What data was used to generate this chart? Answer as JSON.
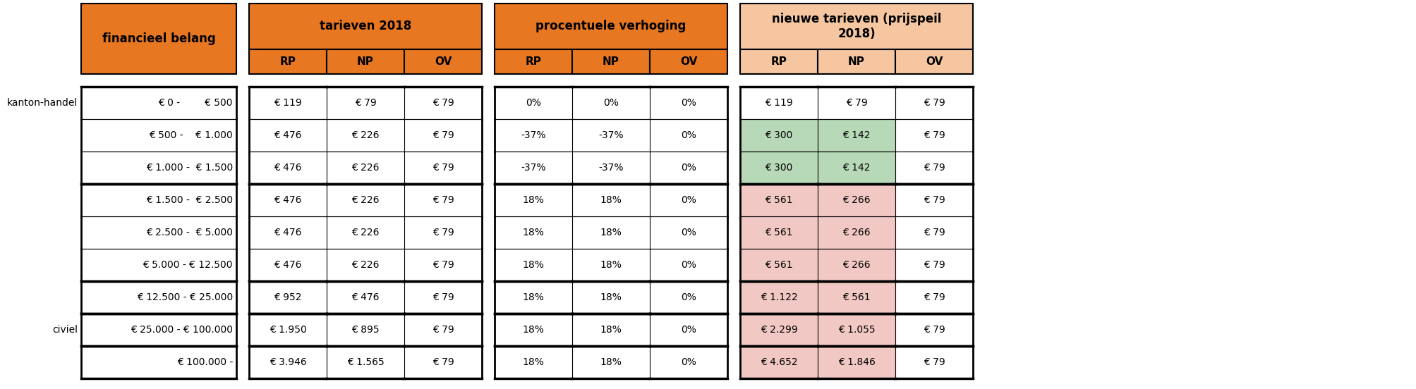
{
  "header_orange": "#E87722",
  "header_light_orange": "#F5C6A0",
  "cell_green": "#B8D9B8",
  "cell_pink": "#F2C8C4",
  "cell_white": "#FFFFFF",
  "border_color": "#000000",
  "financieel_belang": [
    "€ 0 -        € 500",
    "€ 500 -    € 1.000",
    "€ 1.000 -  € 1.500",
    "€ 1.500 -  € 2.500",
    "€ 2.500 -  € 5.000",
    "€ 5.000 - € 12.500",
    "€ 12.500 - € 25.000",
    "€ 25.000 - € 100.000",
    "€ 100.000 -"
  ],
  "tarieven_2018": [
    [
      "€ 119",
      "€ 79",
      "€ 79"
    ],
    [
      "€ 476",
      "€ 226",
      "€ 79"
    ],
    [
      "€ 476",
      "€ 226",
      "€ 79"
    ],
    [
      "€ 476",
      "€ 226",
      "€ 79"
    ],
    [
      "€ 476",
      "€ 226",
      "€ 79"
    ],
    [
      "€ 476",
      "€ 226",
      "€ 79"
    ],
    [
      "€ 952",
      "€ 476",
      "€ 79"
    ],
    [
      "€ 1.950",
      "€ 895",
      "€ 79"
    ],
    [
      "€ 3.946",
      "€ 1.565",
      "€ 79"
    ]
  ],
  "procentuele_verhoging": [
    [
      "0%",
      "0%",
      "0%"
    ],
    [
      "-37%",
      "-37%",
      "0%"
    ],
    [
      "-37%",
      "-37%",
      "0%"
    ],
    [
      "18%",
      "18%",
      "0%"
    ],
    [
      "18%",
      "18%",
      "0%"
    ],
    [
      "18%",
      "18%",
      "0%"
    ],
    [
      "18%",
      "18%",
      "0%"
    ],
    [
      "18%",
      "18%",
      "0%"
    ],
    [
      "18%",
      "18%",
      "0%"
    ]
  ],
  "nieuwe_tarieven": [
    [
      "€ 119",
      "€ 79",
      "€ 79"
    ],
    [
      "€ 300",
      "€ 142",
      "€ 79"
    ],
    [
      "€ 300",
      "€ 142",
      "€ 79"
    ],
    [
      "€ 561",
      "€ 266",
      "€ 79"
    ],
    [
      "€ 561",
      "€ 266",
      "€ 79"
    ],
    [
      "€ 561",
      "€ 266",
      "€ 79"
    ],
    [
      "€ 1.122",
      "€ 561",
      "€ 79"
    ],
    [
      "€ 2.299",
      "€ 1.055",
      "€ 79"
    ],
    [
      "€ 4.652",
      "€ 1.846",
      "€ 79"
    ]
  ],
  "nieuwe_tarieven_colors": [
    [
      "white",
      "white",
      "white"
    ],
    [
      "green",
      "green",
      "white"
    ],
    [
      "green",
      "green",
      "white"
    ],
    [
      "pink",
      "pink",
      "white"
    ],
    [
      "pink",
      "pink",
      "white"
    ],
    [
      "pink",
      "pink",
      "white"
    ],
    [
      "pink",
      "pink",
      "white"
    ],
    [
      "pink",
      "pink",
      "white"
    ],
    [
      "pink",
      "pink",
      "white"
    ]
  ],
  "thick_borders_above": [
    0,
    3,
    6,
    7,
    8
  ],
  "row_labels": [
    "kanton-handel",
    "",
    "",
    "",
    "",
    "",
    "",
    "civiel",
    ""
  ],
  "figsize": [
    20.08,
    5.52
  ],
  "dpi": 100
}
